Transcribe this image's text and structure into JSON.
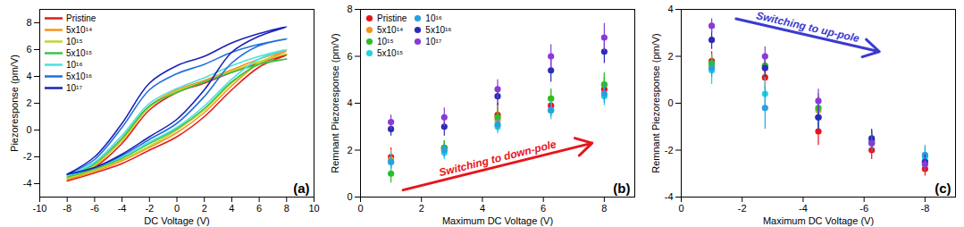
{
  "chart_data": [
    {
      "type": "line",
      "panel_label": "(a)",
      "x_label": "DC Voltage (V)",
      "y_label": "Piezoresponse (pm/V)",
      "x": [
        -8,
        -6,
        -4,
        -2,
        0,
        2,
        4,
        6,
        8,
        6,
        4,
        2,
        0,
        -2,
        -4,
        -6,
        -8
      ],
      "series": [
        {
          "name": "Pristine",
          "color": "#e41a1c",
          "values": [
            -3.8,
            -3.2,
            -2.5,
            -1.5,
            -0.5,
            1.0,
            3.0,
            4.7,
            5.6,
            5.0,
            4.3,
            3.5,
            2.8,
            1.5,
            -1.0,
            -2.8,
            -3.8
          ]
        },
        {
          "name": "5x10¹⁴",
          "color": "#f7941d",
          "values": [
            -3.7,
            -3.1,
            -2.3,
            -1.3,
            -0.2,
            1.3,
            3.3,
            5.0,
            5.9,
            5.3,
            4.5,
            3.7,
            3.0,
            1.8,
            -0.7,
            -2.7,
            -3.7
          ]
        },
        {
          "name": "10¹⁵",
          "color": "#c2d52c",
          "values": [
            -3.6,
            -3.0,
            -2.2,
            -1.2,
            0.0,
            1.5,
            3.5,
            5.0,
            5.7,
            5.1,
            4.4,
            3.6,
            2.9,
            1.7,
            -0.8,
            -2.6,
            -3.6
          ]
        },
        {
          "name": "5x10¹⁵",
          "color": "#3cc24a",
          "values": [
            -3.5,
            -2.9,
            -2.1,
            -1.0,
            0.1,
            1.6,
            3.6,
            4.9,
            5.3,
            4.9,
            4.3,
            3.6,
            2.8,
            1.8,
            -0.6,
            -2.5,
            -3.5
          ]
        },
        {
          "name": "10¹⁶",
          "color": "#4ee0e0",
          "values": [
            -3.4,
            -2.8,
            -2.0,
            -0.9,
            0.2,
            1.8,
            3.8,
            5.3,
            6.0,
            5.5,
            4.8,
            3.9,
            3.1,
            2.0,
            -0.4,
            -2.4,
            -3.4
          ]
        },
        {
          "name": "5x10¹⁶",
          "color": "#1f6fe0",
          "values": [
            -3.3,
            -2.8,
            -1.9,
            -0.7,
            0.5,
            2.5,
            5.0,
            6.3,
            6.8,
            6.4,
            5.8,
            4.9,
            4.2,
            3.0,
            0.2,
            -2.2,
            -3.3
          ]
        },
        {
          "name": "10¹⁷",
          "color": "#1a22b8",
          "values": [
            -3.3,
            -2.8,
            -1.8,
            -0.5,
            0.8,
            3.0,
            5.8,
            7.0,
            7.7,
            7.2,
            6.5,
            5.5,
            4.8,
            3.5,
            0.5,
            -2.0,
            -3.3
          ]
        }
      ],
      "xlim": [
        -10,
        10
      ],
      "xticks": [
        -10,
        -8,
        -6,
        -4,
        -2,
        0,
        2,
        4,
        6,
        8,
        10
      ],
      "ylim": [
        -5,
        9
      ],
      "yticks": [
        -4,
        -2,
        0,
        2,
        4,
        6,
        8
      ],
      "grid": false,
      "legend": "upper-left",
      "line_style": "solid"
    },
    {
      "type": "scatter",
      "panel_label": "(b)",
      "x_label": "Maximum DC Voltage (V)",
      "y_label": "Remnant Piezoresponse (pm/V)",
      "x": [
        1,
        2.75,
        4.5,
        6.25,
        8
      ],
      "series": [
        {
          "name": "Pristine",
          "color": "#e8141b",
          "values": [
            1.7,
            2.1,
            3.5,
            3.9,
            4.6
          ],
          "errors": [
            0.4,
            0.3,
            0.5,
            0.4,
            0.5
          ]
        },
        {
          "name": "5x10¹⁴",
          "color": "#f7941d",
          "values": [
            1.6,
            2.0,
            3.3,
            4.2,
            4.8
          ],
          "errors": [
            0.4,
            0.3,
            0.4,
            0.4,
            0.4
          ]
        },
        {
          "name": "10¹⁵",
          "color": "#25c125",
          "values": [
            1.0,
            2.1,
            3.4,
            4.2,
            4.8
          ],
          "errors": [
            0.4,
            0.3,
            0.4,
            0.4,
            0.5
          ]
        },
        {
          "name": "5x10¹⁵",
          "color": "#22d3e0",
          "values": [
            1.5,
            1.9,
            3.0,
            3.7,
            4.3
          ],
          "errors": [
            0.4,
            0.3,
            0.3,
            0.4,
            0.4
          ]
        },
        {
          "name": "10¹⁶",
          "color": "#2a9fe0",
          "values": [
            1.5,
            2.0,
            3.1,
            3.7,
            4.4
          ],
          "errors": [
            0.3,
            0.3,
            0.3,
            0.3,
            0.4
          ]
        },
        {
          "name": "5x10¹⁶",
          "color": "#2b2bb5",
          "values": [
            2.9,
            3.0,
            4.3,
            5.4,
            6.2
          ],
          "errors": [
            0.3,
            0.4,
            0.4,
            0.5,
            0.5
          ]
        },
        {
          "name": "10¹⁷",
          "color": "#8a3ad6",
          "values": [
            3.2,
            3.4,
            4.6,
            6.0,
            6.8
          ],
          "errors": [
            0.3,
            0.4,
            0.4,
            0.5,
            0.6
          ]
        }
      ],
      "xlim": [
        0,
        9
      ],
      "xticks": [
        0,
        2,
        4,
        6,
        8
      ],
      "ylim": [
        0,
        8
      ],
      "yticks": [
        0,
        2,
        4,
        6,
        8
      ],
      "grid": false,
      "legend": "upper-left",
      "marker": "circle",
      "annotations": [
        {
          "text": "Switching to down-pole",
          "color": "#e8141b",
          "x": [
            1.4,
            7.6
          ],
          "y": [
            0.3,
            2.3
          ]
        }
      ]
    },
    {
      "type": "scatter",
      "panel_label": "(c)",
      "x_label": "Maximum DC Voltage (V)",
      "y_label": "Remnant Piezoresponse (pm/V)",
      "x": [
        -1,
        -2.75,
        -4.5,
        -6.25,
        -8
      ],
      "series": [
        {
          "color": "#e8141b",
          "values": [
            1.8,
            1.1,
            -1.2,
            -2.0,
            -2.8
          ],
          "errors": [
            0.4,
            0.5,
            0.6,
            0.4,
            0.3
          ]
        },
        {
          "color": "#f7941d",
          "values": [
            1.6,
            1.6,
            -0.3,
            -1.6,
            -2.6
          ],
          "errors": [
            0.4,
            0.5,
            0.6,
            0.4,
            0.3
          ]
        },
        {
          "color": "#25c125",
          "values": [
            1.7,
            1.6,
            -0.2,
            -1.6,
            -2.5
          ],
          "errors": [
            0.4,
            0.5,
            0.6,
            0.4,
            0.3
          ]
        },
        {
          "color": "#22d3e0",
          "values": [
            1.4,
            0.4,
            -0.6,
            -1.6,
            -2.3
          ],
          "errors": [
            0.6,
            0.7,
            0.5,
            0.4,
            0.4
          ]
        },
        {
          "color": "#2a9fe0",
          "values": [
            1.5,
            -0.2,
            -0.6,
            -1.7,
            -2.2
          ],
          "errors": [
            0.4,
            0.9,
            0.5,
            0.4,
            0.4
          ]
        },
        {
          "color": "#2b2bb5",
          "values": [
            2.7,
            1.5,
            -0.6,
            -1.5,
            -2.5
          ],
          "errors": [
            0.4,
            0.4,
            0.5,
            0.4,
            0.3
          ]
        },
        {
          "color": "#8a3ad6",
          "values": [
            3.3,
            2.0,
            0.1,
            -1.7,
            -2.6
          ],
          "errors": [
            0.3,
            0.4,
            0.5,
            0.4,
            0.3
          ]
        }
      ],
      "xlim": [
        0,
        -9
      ],
      "xticks": [
        0,
        -2,
        -4,
        -6,
        -8
      ],
      "ylim": [
        -4,
        4
      ],
      "yticks": [
        -4,
        -2,
        0,
        2,
        4
      ],
      "grid": false,
      "marker": "circle",
      "annotations": [
        {
          "text": "Switching to up-pole",
          "color": "#3a3ad0",
          "x": [
            -1.8,
            -6.5
          ],
          "y": [
            3.6,
            2.2
          ]
        }
      ]
    }
  ]
}
